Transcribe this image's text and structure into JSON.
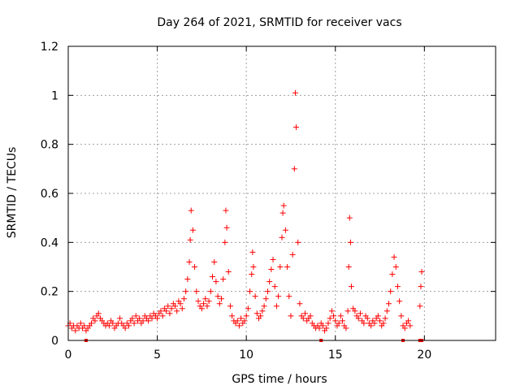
{
  "chart_data": {
    "type": "scatter",
    "title": "Day 264 of 2021, SRMTID for receiver vacs",
    "xlabel": "GPS time / hours",
    "ylabel": "SRMTID / TECUs",
    "xlim": [
      0,
      24
    ],
    "ylim": [
      0,
      1.2
    ],
    "x_ticks": [
      0,
      5,
      10,
      15,
      20
    ],
    "x_tick_labels": [
      "0",
      "5",
      "10",
      "15",
      "20"
    ],
    "y_ticks": [
      0,
      0.2,
      0.4,
      0.6,
      0.8,
      1,
      1.2
    ],
    "y_tick_labels": [
      "0",
      "0.2",
      "0.4",
      "0.6",
      "0.8",
      "1",
      "1.2"
    ],
    "grid": true,
    "marker": "plus",
    "series": [
      {
        "name": "SRMTID",
        "color": "#ff0000",
        "points": [
          [
            0.0,
            0.06
          ],
          [
            0.1,
            0.07
          ],
          [
            0.2,
            0.05
          ],
          [
            0.3,
            0.06
          ],
          [
            0.4,
            0.04
          ],
          [
            0.5,
            0.06
          ],
          [
            0.6,
            0.05
          ],
          [
            0.7,
            0.07
          ],
          [
            0.8,
            0.05
          ],
          [
            0.9,
            0.06
          ],
          [
            1.0,
            0.04
          ],
          [
            1.1,
            0.05
          ],
          [
            1.2,
            0.06
          ],
          [
            1.3,
            0.07
          ],
          [
            1.4,
            0.09
          ],
          [
            1.5,
            0.08
          ],
          [
            1.6,
            0.1
          ],
          [
            1.7,
            0.11
          ],
          [
            1.8,
            0.09
          ],
          [
            1.9,
            0.08
          ],
          [
            2.0,
            0.07
          ],
          [
            2.1,
            0.06
          ],
          [
            2.2,
            0.07
          ],
          [
            2.3,
            0.06
          ],
          [
            2.4,
            0.08
          ],
          [
            2.5,
            0.07
          ],
          [
            2.6,
            0.05
          ],
          [
            2.7,
            0.06
          ],
          [
            2.8,
            0.07
          ],
          [
            2.9,
            0.09
          ],
          [
            3.0,
            0.07
          ],
          [
            3.1,
            0.06
          ],
          [
            3.2,
            0.05
          ],
          [
            3.3,
            0.07
          ],
          [
            3.4,
            0.06
          ],
          [
            3.5,
            0.08
          ],
          [
            3.6,
            0.09
          ],
          [
            3.7,
            0.07
          ],
          [
            3.8,
            0.1
          ],
          [
            3.9,
            0.08
          ],
          [
            4.0,
            0.09
          ],
          [
            4.1,
            0.07
          ],
          [
            4.2,
            0.08
          ],
          [
            4.3,
            0.1
          ],
          [
            4.4,
            0.09
          ],
          [
            4.5,
            0.08
          ],
          [
            4.6,
            0.1
          ],
          [
            4.7,
            0.09
          ],
          [
            4.8,
            0.11
          ],
          [
            4.9,
            0.1
          ],
          [
            5.0,
            0.09
          ],
          [
            5.1,
            0.11
          ],
          [
            5.2,
            0.12
          ],
          [
            5.3,
            0.1
          ],
          [
            5.4,
            0.13
          ],
          [
            5.5,
            0.12
          ],
          [
            5.6,
            0.14
          ],
          [
            5.7,
            0.11
          ],
          [
            5.8,
            0.13
          ],
          [
            5.9,
            0.15
          ],
          [
            6.0,
            0.14
          ],
          [
            6.1,
            0.12
          ],
          [
            6.2,
            0.16
          ],
          [
            6.3,
            0.15
          ],
          [
            6.4,
            0.13
          ],
          [
            6.5,
            0.17
          ],
          [
            6.6,
            0.2
          ],
          [
            6.7,
            0.25
          ],
          [
            6.8,
            0.32
          ],
          [
            6.85,
            0.41
          ],
          [
            6.9,
            0.53
          ],
          [
            7.0,
            0.45
          ],
          [
            7.1,
            0.3
          ],
          [
            7.2,
            0.2
          ],
          [
            7.3,
            0.16
          ],
          [
            7.4,
            0.14
          ],
          [
            7.5,
            0.13
          ],
          [
            7.6,
            0.15
          ],
          [
            7.7,
            0.17
          ],
          [
            7.8,
            0.14
          ],
          [
            7.9,
            0.16
          ],
          [
            8.0,
            0.2
          ],
          [
            8.1,
            0.26
          ],
          [
            8.2,
            0.32
          ],
          [
            8.3,
            0.24
          ],
          [
            8.4,
            0.18
          ],
          [
            8.5,
            0.15
          ],
          [
            8.6,
            0.17
          ],
          [
            8.7,
            0.25
          ],
          [
            8.8,
            0.4
          ],
          [
            8.85,
            0.53
          ],
          [
            8.9,
            0.46
          ],
          [
            9.0,
            0.28
          ],
          [
            9.1,
            0.14
          ],
          [
            9.2,
            0.1
          ],
          [
            9.3,
            0.08
          ],
          [
            9.4,
            0.07
          ],
          [
            9.5,
            0.08
          ],
          [
            9.6,
            0.06
          ],
          [
            9.7,
            0.09
          ],
          [
            9.8,
            0.07
          ],
          [
            9.9,
            0.08
          ],
          [
            10.0,
            0.1
          ],
          [
            10.1,
            0.13
          ],
          [
            10.2,
            0.2
          ],
          [
            10.3,
            0.27
          ],
          [
            10.35,
            0.36
          ],
          [
            10.4,
            0.3
          ],
          [
            10.5,
            0.18
          ],
          [
            10.6,
            0.11
          ],
          [
            10.7,
            0.09
          ],
          [
            10.8,
            0.1
          ],
          [
            10.9,
            0.12
          ],
          [
            11.0,
            0.14
          ],
          [
            11.1,
            0.17
          ],
          [
            11.2,
            0.2
          ],
          [
            11.3,
            0.24
          ],
          [
            11.4,
            0.29
          ],
          [
            11.5,
            0.33
          ],
          [
            11.6,
            0.22
          ],
          [
            11.7,
            0.14
          ],
          [
            11.8,
            0.18
          ],
          [
            11.9,
            0.3
          ],
          [
            12.0,
            0.42
          ],
          [
            12.05,
            0.52
          ],
          [
            12.1,
            0.55
          ],
          [
            12.2,
            0.45
          ],
          [
            12.3,
            0.3
          ],
          [
            12.4,
            0.18
          ],
          [
            12.5,
            0.1
          ],
          [
            12.6,
            0.35
          ],
          [
            12.7,
            0.7
          ],
          [
            12.75,
            1.01
          ],
          [
            12.8,
            0.87
          ],
          [
            12.9,
            0.4
          ],
          [
            13.0,
            0.15
          ],
          [
            13.1,
            0.1
          ],
          [
            13.2,
            0.09
          ],
          [
            13.3,
            0.11
          ],
          [
            13.4,
            0.08
          ],
          [
            13.5,
            0.09
          ],
          [
            13.6,
            0.1
          ],
          [
            13.7,
            0.07
          ],
          [
            13.8,
            0.06
          ],
          [
            13.9,
            0.05
          ],
          [
            14.0,
            0.06
          ],
          [
            14.1,
            0.05
          ],
          [
            14.2,
            0.07
          ],
          [
            14.3,
            0.06
          ],
          [
            14.4,
            0.04
          ],
          [
            14.5,
            0.05
          ],
          [
            14.6,
            0.07
          ],
          [
            14.7,
            0.09
          ],
          [
            14.8,
            0.12
          ],
          [
            14.9,
            0.1
          ],
          [
            15.0,
            0.08
          ],
          [
            15.1,
            0.06
          ],
          [
            15.2,
            0.07
          ],
          [
            15.3,
            0.1
          ],
          [
            15.4,
            0.08
          ],
          [
            15.5,
            0.06
          ],
          [
            15.6,
            0.05
          ],
          [
            15.7,
            0.12
          ],
          [
            15.75,
            0.3
          ],
          [
            15.8,
            0.5
          ],
          [
            15.85,
            0.4
          ],
          [
            15.9,
            0.22
          ],
          [
            16.0,
            0.13
          ],
          [
            16.1,
            0.12
          ],
          [
            16.2,
            0.1
          ],
          [
            16.3,
            0.09
          ],
          [
            16.4,
            0.11
          ],
          [
            16.5,
            0.08
          ],
          [
            16.6,
            0.07
          ],
          [
            16.7,
            0.1
          ],
          [
            16.8,
            0.09
          ],
          [
            16.9,
            0.07
          ],
          [
            17.0,
            0.06
          ],
          [
            17.1,
            0.08
          ],
          [
            17.2,
            0.07
          ],
          [
            17.3,
            0.09
          ],
          [
            17.4,
            0.1
          ],
          [
            17.5,
            0.08
          ],
          [
            17.6,
            0.06
          ],
          [
            17.7,
            0.07
          ],
          [
            17.8,
            0.09
          ],
          [
            17.9,
            0.12
          ],
          [
            18.0,
            0.15
          ],
          [
            18.1,
            0.2
          ],
          [
            18.2,
            0.27
          ],
          [
            18.3,
            0.34
          ],
          [
            18.4,
            0.3
          ],
          [
            18.5,
            0.22
          ],
          [
            18.6,
            0.16
          ],
          [
            18.7,
            0.1
          ],
          [
            18.8,
            0.06
          ],
          [
            18.9,
            0.05
          ],
          [
            19.0,
            0.07
          ],
          [
            19.1,
            0.08
          ],
          [
            19.2,
            0.06
          ],
          [
            19.75,
            0.14
          ],
          [
            19.8,
            0.22
          ],
          [
            19.85,
            0.28
          ]
        ]
      }
    ],
    "gap_markers_x": [
      1.0,
      14.2,
      18.8,
      19.75,
      19.85
    ]
  }
}
